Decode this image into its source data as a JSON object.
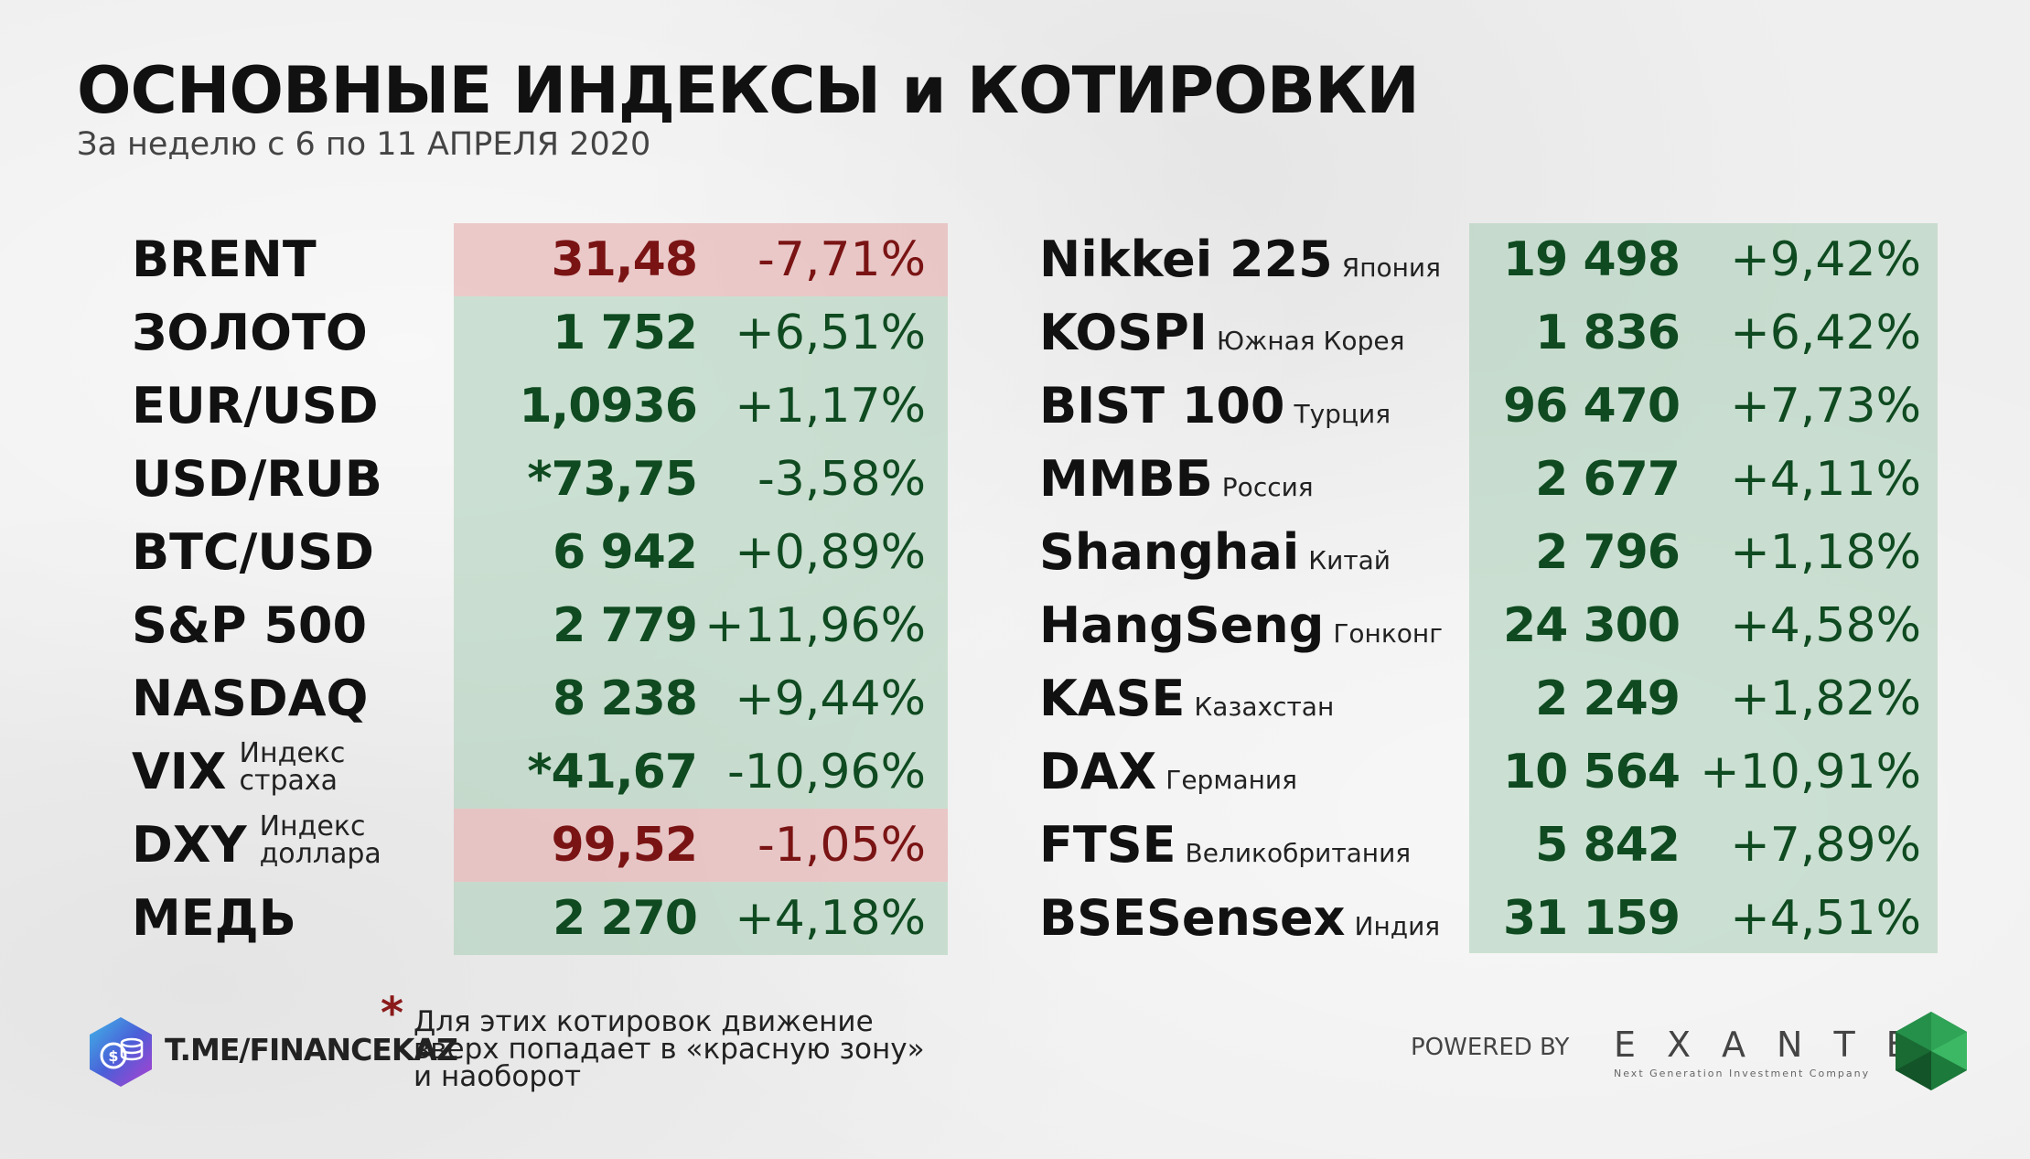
{
  "header": {
    "title": "ОСНОВНЫЕ ИНДЕКСЫ и КОТИРОВКИ",
    "subtitle": "За неделю с 6 по 11 АПРЕЛЯ 2020"
  },
  "left_table": [
    {
      "name": "BRENT",
      "value": "31,48",
      "change": "-7,71%",
      "zone": "red"
    },
    {
      "name": "ЗОЛОТО",
      "value": "1 752",
      "change": "+6,51%",
      "zone": "green"
    },
    {
      "name": "EUR/USD",
      "value": "1,0936",
      "change": "+1,17%",
      "zone": "green"
    },
    {
      "name": "USD/RUB",
      "value": "*73,75",
      "change": "-3,58%",
      "zone": "green"
    },
    {
      "name": "BTC/USD",
      "value": "6 942",
      "change": "+0,89%",
      "zone": "green"
    },
    {
      "name": "S&P 500",
      "value": "2 779",
      "change": "+11,96%",
      "zone": "green"
    },
    {
      "name": "NASDAQ",
      "value": "8 238",
      "change": "+9,44%",
      "zone": "green"
    },
    {
      "name": "VIX",
      "note_line1": "Индекс",
      "note_line2": "страха",
      "value": "*41,67",
      "change": "-10,96%",
      "zone": "green"
    },
    {
      "name": "DXY",
      "note_line1": "Индекс",
      "note_line2": "доллара",
      "value": "99,52",
      "change": "-1,05%",
      "zone": "red"
    },
    {
      "name": "МЕДЬ",
      "value": "2 270",
      "change": "+4,18%",
      "zone": "green"
    }
  ],
  "right_table": [
    {
      "name": "Nikkei 225",
      "country": "Япония",
      "value": "19 498",
      "change": "+9,42%"
    },
    {
      "name": "KOSPI",
      "country": "Южная Корея",
      "value": "1 836",
      "change": "+6,42%"
    },
    {
      "name": "BIST 100",
      "country": "Турция",
      "value": "96 470",
      "change": "+7,73%"
    },
    {
      "name": "ММВБ",
      "country": "Россия",
      "value": "2 677",
      "change": "+4,11%"
    },
    {
      "name": "Shanghai",
      "country": "Китай",
      "value": "2 796",
      "change": "+1,18%"
    },
    {
      "name": "HangSeng",
      "country": "Гонконг",
      "value": "24 300",
      "change": "+4,58%"
    },
    {
      "name": "KASE",
      "country": "Казахстан",
      "value": "2 249",
      "change": "+1,82%"
    },
    {
      "name": "DAX",
      "country": "Германия",
      "value": "10 564",
      "change": "+10,91%"
    },
    {
      "name": "FTSE",
      "country": "Великобритания",
      "value": "5 842",
      "change": "+7,89%"
    },
    {
      "name": "BSESensex",
      "country": "Индия",
      "value": "31 159",
      "change": "+4,51%"
    }
  ],
  "footer": {
    "channel": "T.ME/FINANCEKAZ",
    "asterisk": "*",
    "note_lines": [
      "Для этих котировок движение",
      "вверх попадает в «красную зону»",
      "и наоборот"
    ],
    "powered_by": "POWERED BY",
    "brand": "EXANTE",
    "brand_tagline": "Next Generation Investment Company"
  },
  "colors": {
    "green_text": "#0f4a20",
    "red_text": "#7a1414",
    "green_zone": "#a8cdb4",
    "red_zone": "#e4acac"
  },
  "icons": {
    "channel_logo": "coin-stack-icon",
    "brand_logo": "emerald-gem-icon"
  }
}
